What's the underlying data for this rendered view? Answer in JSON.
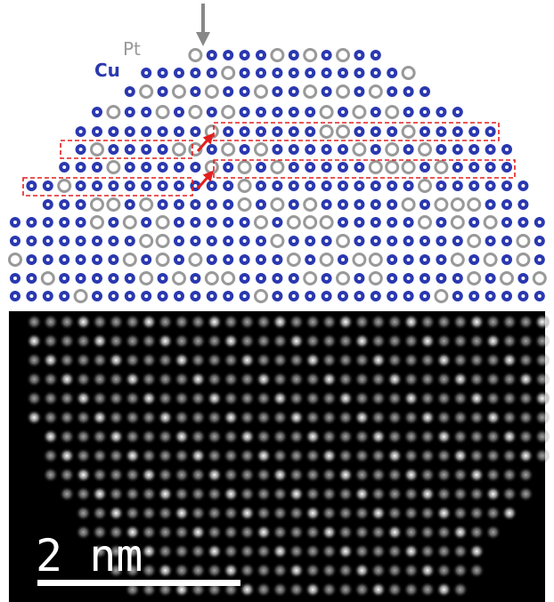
{
  "labels": {
    "pt": "Pt",
    "cu": "Cu"
  },
  "scale_bar": {
    "label": "2 nm"
  }
}
